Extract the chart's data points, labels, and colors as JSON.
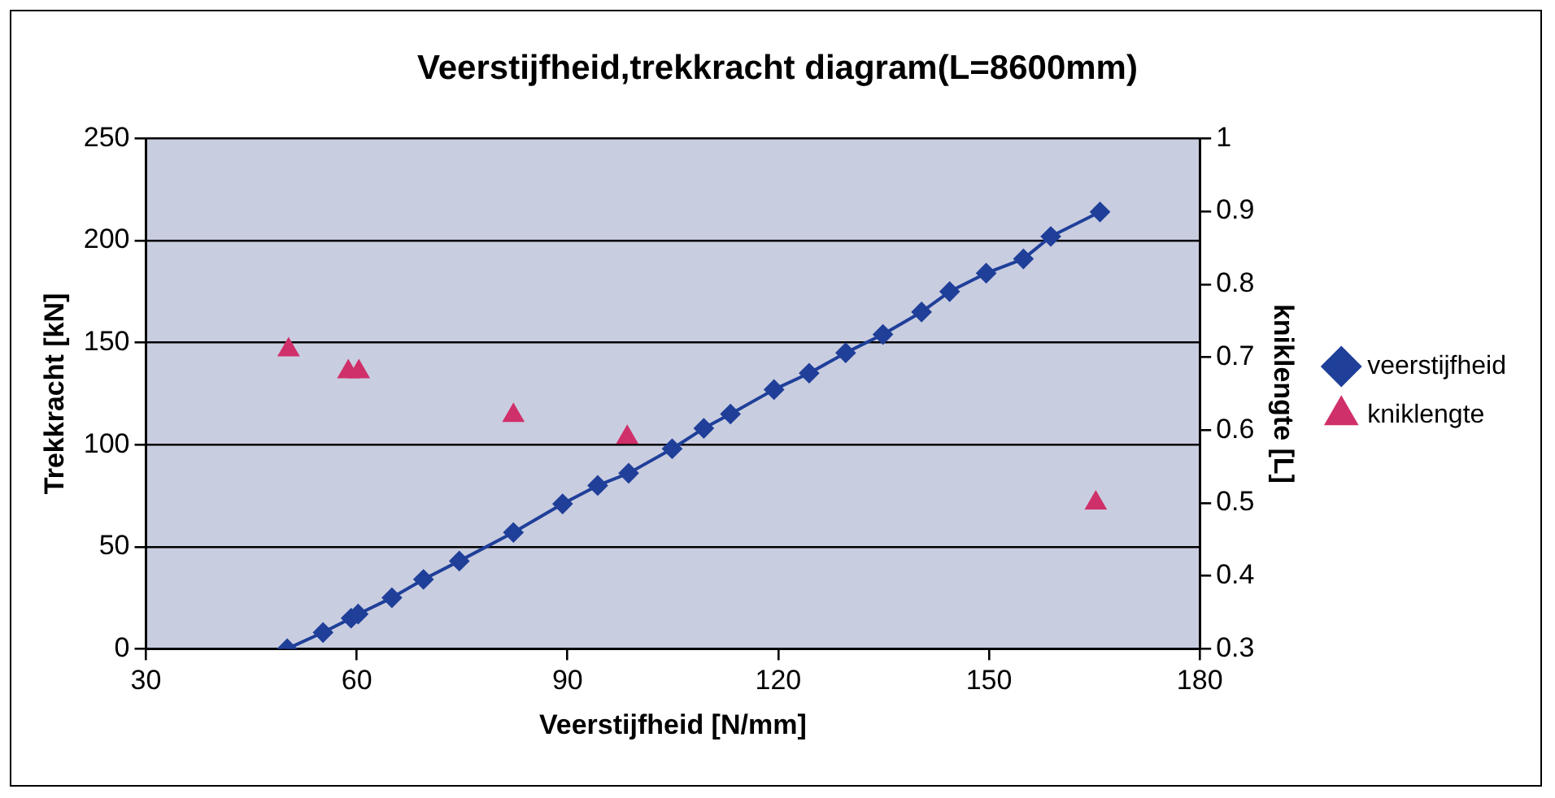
{
  "chart_data": {
    "type": "line",
    "title": "Veerstijfheid,trekkracht diagram(L=8600mm)",
    "xlabel": "Veerstijfheid [N/mm]",
    "ylabel": "Trekkracht [kN]",
    "y2label": "kniklengte [L]",
    "xlim": [
      30,
      180
    ],
    "xticks": [
      30,
      60,
      90,
      120,
      150,
      180
    ],
    "ylim": [
      0,
      250
    ],
    "yticks": [
      0,
      50,
      100,
      150,
      200,
      250
    ],
    "y2lim": [
      0.3,
      1
    ],
    "y2ticks": [
      0.3,
      0.4,
      0.5,
      0.6,
      0.7,
      0.8,
      0.9,
      1
    ],
    "grid": "y",
    "legend": "right",
    "series": [
      {
        "name": "veerstijfheid",
        "type": "line",
        "color": "#1f3f99",
        "marker": "diamond",
        "line_style": "solid",
        "x": [
          50.1,
          55.2,
          59.2,
          60.2,
          65,
          69.5,
          74.6,
          82.3,
          89.3,
          94.3,
          98.7,
          104.9,
          109.4,
          113.2,
          119.4,
          124.4,
          129.6,
          134.9,
          140.4,
          144.4,
          149.6,
          154.9,
          158.8,
          165.8
        ],
        "values": [
          0,
          8,
          15,
          17,
          25,
          34,
          43,
          57,
          71,
          80,
          86,
          98,
          108,
          115,
          127,
          135,
          145,
          154,
          165,
          175,
          184,
          191,
          202,
          214
        ]
      },
      {
        "name": "kniklengte",
        "type": "scatter",
        "axis": "y2",
        "color": "#d0306a",
        "marker": "triangle",
        "x": [
          50.3,
          58.8,
          60.3,
          82.3,
          98.5,
          165.2
        ],
        "values": [
          0.71,
          0.68,
          0.68,
          0.62,
          0.59,
          0.5
        ]
      }
    ]
  }
}
